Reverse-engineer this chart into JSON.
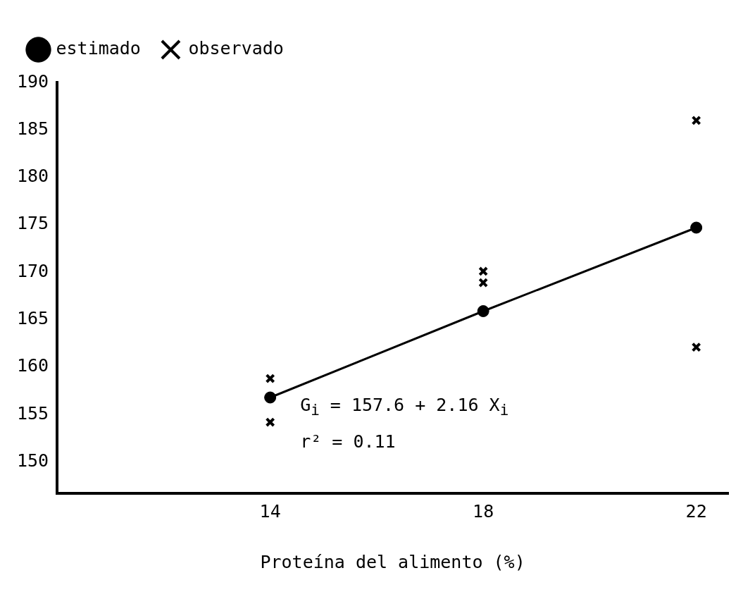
{
  "chart_data": {
    "type": "scatter",
    "xlabel": "Proteína del alimento (%)",
    "xlim": [
      10,
      22.6
    ],
    "xticks": [
      14,
      18,
      22
    ],
    "ylim": [
      146.7,
      190
    ],
    "yticks": [
      150,
      155,
      160,
      165,
      170,
      175,
      180,
      185,
      190
    ],
    "grid": false,
    "legend": "top left",
    "series": [
      {
        "name": "estimado",
        "type": "line",
        "color": "#000000",
        "marker": "circle",
        "line_style": "solid",
        "x": [
          14,
          18,
          22
        ],
        "values": [
          156.8,
          165.9,
          174.7
        ]
      },
      {
        "name": "observado",
        "type": "scatter",
        "color": "#000000",
        "marker": "cross",
        "x": [
          14,
          14,
          18,
          18,
          22,
          22
        ],
        "values": [
          158.8,
          154.2,
          170.1,
          168.9,
          186.0,
          162.1
        ]
      }
    ],
    "annotations": [
      "G$_{i}$ = 157.6 + 2.16 X$_{i}$",
      "r² = 0.11"
    ]
  }
}
